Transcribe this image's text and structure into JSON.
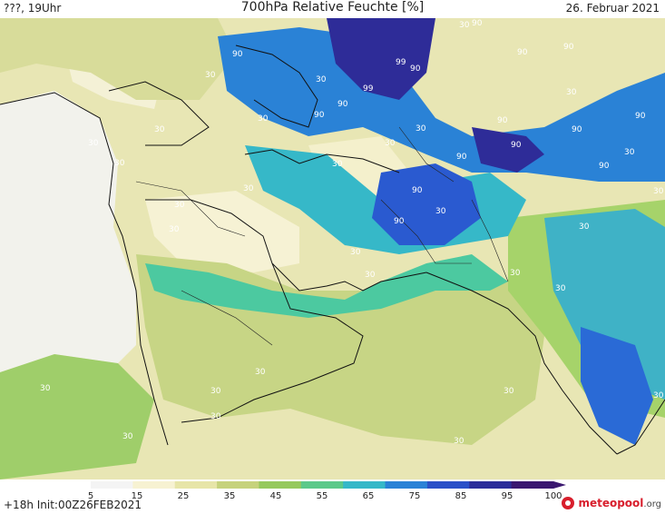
{
  "header": {
    "left": "???, 19Uhr",
    "title": "700hPa Relative Feuchte [%]",
    "date": "26. Februar 2021"
  },
  "footer": {
    "run": "+18h Init:00Z26FEB2021",
    "logo_main": "meteopool",
    "logo_tld": ".org"
  },
  "legend": {
    "ticks": [
      "5",
      "15",
      "25",
      "35",
      "45",
      "55",
      "65",
      "75",
      "85",
      "95",
      "100"
    ],
    "colors": [
      "#f4f4f4",
      "#f7f2d2",
      "#e7e5a8",
      "#c6d27c",
      "#96c95e",
      "#5cc98a",
      "#36b8c8",
      "#2a82d6",
      "#2a50c8",
      "#2c2e9a",
      "#3a1870"
    ]
  },
  "map": {
    "contour_labels_30": [
      "30",
      "30",
      "30",
      "30",
      "30",
      "30",
      "30",
      "30",
      "30",
      "30",
      "30",
      "30",
      "30",
      "30",
      "30",
      "30",
      "30",
      "30",
      "30",
      "30",
      "30",
      "30",
      "30",
      "30",
      "30",
      "30",
      "30",
      "30",
      "30",
      "30"
    ],
    "contour_labels_90": [
      "90",
      "90",
      "90",
      "90",
      "90",
      "90",
      "90",
      "90",
      "90",
      "90",
      "90",
      "90",
      "90",
      "90",
      "90"
    ],
    "contour_labels_99": [
      "99",
      "99"
    ]
  }
}
